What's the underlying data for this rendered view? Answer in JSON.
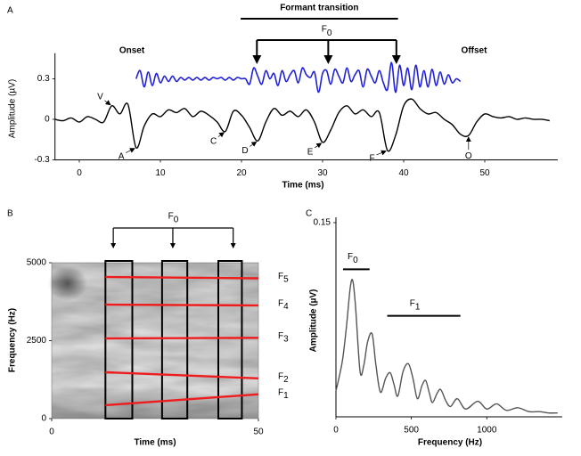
{
  "chart_data": [
    {
      "type": "line",
      "panel": "A",
      "xlabel": "Time (ms)",
      "ylabel": "Amplitude (µV)",
      "xlim": [
        -3,
        59
      ],
      "ylim": [
        -0.3,
        0.45
      ],
      "xticks": [
        0,
        10,
        20,
        30,
        40,
        50
      ],
      "yticks": [
        -0.3,
        0,
        0.3
      ],
      "series": [
        {
          "color": "#000000",
          "x": [
            -3,
            -2,
            -1,
            0,
            1,
            2,
            3,
            4,
            5,
            6,
            7,
            8,
            9,
            10,
            11,
            12,
            13,
            14,
            15,
            16,
            17,
            18,
            19,
            20,
            21,
            22,
            23,
            24,
            25,
            26,
            27,
            28,
            29,
            30,
            31,
            32,
            33,
            34,
            35,
            36,
            37,
            38,
            39,
            40,
            41,
            42,
            43,
            44,
            45,
            46,
            47,
            48,
            49,
            50,
            51,
            52,
            53,
            54,
            55,
            56,
            57,
            58
          ],
          "values": [
            0,
            -0.01,
            0.01,
            -0.02,
            0.02,
            0,
            -0.02,
            0.1,
            0.04,
            0.11,
            -0.21,
            -0.05,
            0.04,
            0.02,
            0.07,
            0.05,
            0.08,
            0.02,
            0.06,
            0.03,
            -0.02,
            -0.09,
            0.06,
            0.03,
            -0.06,
            -0.16,
            -0.02,
            0.08,
            0.03,
            0.06,
            0.02,
            0.07,
            -0.02,
            -0.17,
            -0.08,
            0.05,
            0.1,
            0.04,
            0.07,
            0.02,
            0.05,
            -0.23,
            -0.12,
            0.1,
            0.15,
            0.08,
            0.04,
            0.05,
            0,
            -0.04,
            -0.11,
            -0.12,
            -0.02,
            0.04,
            0.02,
            0.01,
            0.02,
            0,
            0.01,
            0,
            0,
            -0.01
          ]
        },
        {
          "color": "#2020d8",
          "x": [
            7,
            7.5,
            8,
            8.5,
            9,
            9.5,
            10,
            10.5,
            11,
            11.5,
            12,
            12.5,
            13,
            13.5,
            14,
            14.5,
            15,
            15.5,
            16,
            16.5,
            17,
            17.5,
            18,
            18.5,
            19,
            19.5,
            20,
            20.5,
            21,
            21.5,
            22,
            22.5,
            23,
            23.5,
            24,
            24.5,
            25,
            25.5,
            26,
            26.5,
            27,
            27.5,
            28,
            28.5,
            29,
            29.5,
            30,
            30.5,
            31,
            31.5,
            32,
            32.5,
            33,
            33.5,
            34,
            34.5,
            35,
            35.5,
            36,
            36.5,
            37,
            37.5,
            38,
            38.5,
            39,
            39.5,
            40,
            40.5,
            41,
            41.5,
            42,
            42.5,
            43,
            43.5,
            44,
            44.5,
            45,
            45.5,
            46,
            46.5,
            47
          ],
          "values": [
            0.3,
            0.36,
            0.24,
            0.35,
            0.25,
            0.34,
            0.27,
            0.32,
            0.28,
            0.32,
            0.28,
            0.31,
            0.29,
            0.31,
            0.29,
            0.31,
            0.29,
            0.31,
            0.29,
            0.31,
            0.3,
            0.31,
            0.29,
            0.31,
            0.29,
            0.31,
            0.3,
            0.3,
            0.26,
            0.38,
            0.32,
            0.26,
            0.36,
            0.3,
            0.34,
            0.25,
            0.36,
            0.28,
            0.33,
            0.36,
            0.27,
            0.38,
            0.33,
            0.31,
            0.35,
            0.2,
            0.34,
            0.36,
            0.26,
            0.37,
            0.32,
            0.27,
            0.38,
            0.28,
            0.33,
            0.36,
            0.24,
            0.37,
            0.32,
            0.27,
            0.36,
            0.27,
            0.22,
            0.42,
            0.2,
            0.4,
            0.25,
            0.38,
            0.22,
            0.4,
            0.24,
            0.36,
            0.24,
            0.37,
            0.25,
            0.35,
            0.26,
            0.33,
            0.27,
            0.3,
            0.28
          ]
        }
      ],
      "peaks": [
        {
          "label": "V",
          "x": 4,
          "y": 0.1
        },
        {
          "label": "A",
          "x": 7,
          "y": -0.21
        },
        {
          "label": "C",
          "x": 18,
          "y": -0.09
        },
        {
          "label": "D",
          "x": 22,
          "y": -0.16
        },
        {
          "label": "E",
          "x": 30,
          "y": -0.17
        },
        {
          "label": "F",
          "x": 38,
          "y": -0.23
        },
        {
          "label": "O",
          "x": 48,
          "y": -0.12
        }
      ],
      "segment_labels": [
        "Onset",
        "Offset"
      ],
      "formant_transition": {
        "label": "Formant transition",
        "x": [
          19.9,
          39.3
        ]
      },
      "f0": {
        "text": "F",
        "sub": "0",
        "x": [
          21.9,
          30.7,
          39.1
        ]
      }
    },
    {
      "type": "spectrogram",
      "panel": "B",
      "xlabel": "Time (ms)",
      "ylabel": "Frequency (Hz)",
      "xlim": [
        0,
        50
      ],
      "ylim": [
        0,
        5000
      ],
      "xticks": [
        0,
        50
      ],
      "yticks": [
        0,
        2500,
        5000
      ],
      "series": [
        {
          "name": "F",
          "sub": "5",
          "color": "#ee1c1c",
          "x": [
            13,
            50
          ],
          "values": [
            4543,
            4500
          ]
        },
        {
          "name": "F",
          "sub": "4",
          "color": "#ee1c1c",
          "x": [
            13,
            50
          ],
          "values": [
            3657,
            3630
          ]
        },
        {
          "name": "F",
          "sub": "3",
          "color": "#ee1c1c",
          "x": [
            13,
            50
          ],
          "values": [
            2571,
            2590
          ]
        },
        {
          "name": "F",
          "sub": "2",
          "color": "#ee1c1c",
          "x": [
            13,
            50
          ],
          "values": [
            1486,
            1290
          ]
        },
        {
          "name": "F",
          "sub": "1",
          "color": "#ee1c1c",
          "x": [
            13,
            50
          ],
          "values": [
            430,
            780
          ]
        }
      ],
      "boxes": [
        [
          13,
          19.5
        ],
        [
          26.7,
          32.8
        ],
        [
          40.3,
          46
        ]
      ],
      "f0": {
        "text": "F",
        "sub": "0",
        "x": [
          14.9,
          29.3,
          43.9
        ]
      }
    },
    {
      "type": "line",
      "panel": "C",
      "xlabel": "Frequency (Hz)",
      "ylabel": "Amplitude (µV)",
      "xlim": [
        0,
        1500
      ],
      "ylim": [
        0,
        0.15
      ],
      "xticks": [
        0,
        500,
        1000
      ],
      "yticks": [
        0.15
      ],
      "series": [
        {
          "color": "#555555",
          "x": [
            0,
            20,
            45,
            70,
            95,
            112,
            130,
            160,
            185,
            210,
            240,
            265,
            295,
            330,
            360,
            385,
            410,
            445,
            480,
            510,
            540,
            570,
            595,
            620,
            640,
            670,
            695,
            730,
            760,
            805,
            860,
            940,
            1000,
            1065,
            1130,
            1205,
            1280,
            1350,
            1410,
            1470
          ],
          "values": [
            0.02,
            0.03,
            0.045,
            0.07,
            0.1,
            0.105,
            0.085,
            0.035,
            0.04,
            0.058,
            0.064,
            0.04,
            0.019,
            0.03,
            0.034,
            0.025,
            0.016,
            0.035,
            0.041,
            0.03,
            0.014,
            0.024,
            0.028,
            0.018,
            0.011,
            0.018,
            0.021,
            0.012,
            0.008,
            0.014,
            0.006,
            0.012,
            0.006,
            0.01,
            0.005,
            0.007,
            0.004,
            0.004,
            0.003,
            0.003
          ]
        }
      ],
      "brackets": [
        {
          "text": "F",
          "sub": "0",
          "x": [
            47,
            223
          ],
          "y": 0.114
        },
        {
          "text": "F",
          "sub": "1",
          "x": [
            340,
            825
          ],
          "y": 0.078
        }
      ]
    }
  ]
}
